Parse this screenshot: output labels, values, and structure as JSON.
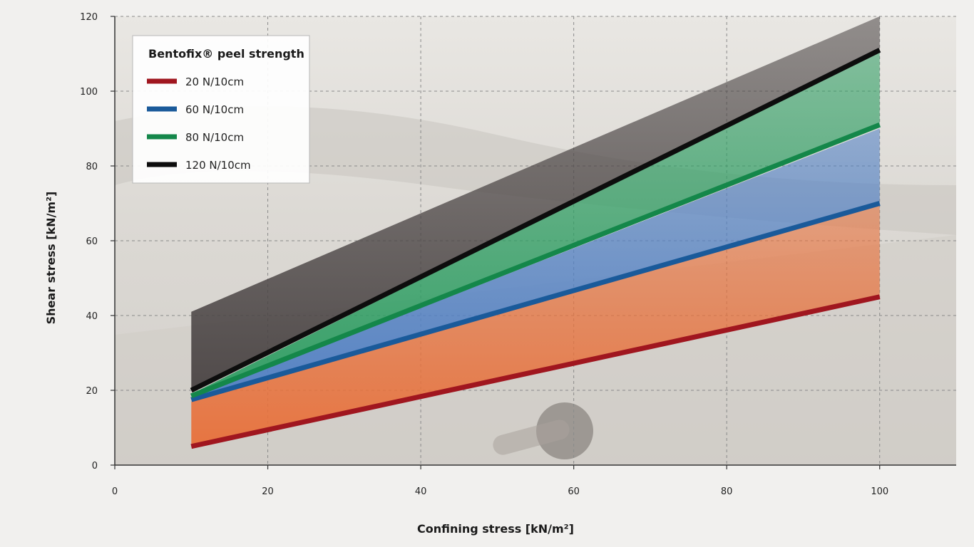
{
  "chart_data": {
    "type": "line",
    "xlabel": "Confining stress [kN/m²]",
    "ylabel": "Shear stress [kN/m²]",
    "xlim": [
      0,
      110
    ],
    "ylim": [
      0,
      120
    ],
    "x_ticks": [
      "0",
      "20",
      "40",
      "60",
      "80",
      "100"
    ],
    "y_ticks": [
      "0",
      "20",
      "40",
      "60",
      "80",
      "100",
      "120"
    ],
    "grid": true,
    "legend": {
      "title": "Bentofix® peel strength",
      "position": "top-left"
    },
    "series": [
      {
        "name": "20 N/10cm",
        "color": "#a0161f",
        "band_color": "#e8703a",
        "x": [
          10,
          100
        ],
        "y": [
          5,
          45
        ],
        "band_upper": [
          17,
          70
        ]
      },
      {
        "name": "60 N/10cm",
        "color": "#1a5a9a",
        "band_color": "#4f7fc4",
        "x": [
          10,
          100
        ],
        "y": [
          17.5,
          70
        ],
        "band_upper": [
          18,
          90
        ]
      },
      {
        "name": "80 N/10cm",
        "color": "#14874a",
        "band_color": "#2e9e63",
        "x": [
          10,
          100
        ],
        "y": [
          18.5,
          91
        ],
        "band_upper": [
          19,
          111
        ]
      },
      {
        "name": "120 N/10cm",
        "color": "#0d0d0d",
        "band_color": "#4a4444",
        "x": [
          10,
          100
        ],
        "y": [
          20,
          111
        ],
        "band_upper": [
          41,
          120
        ]
      }
    ]
  }
}
